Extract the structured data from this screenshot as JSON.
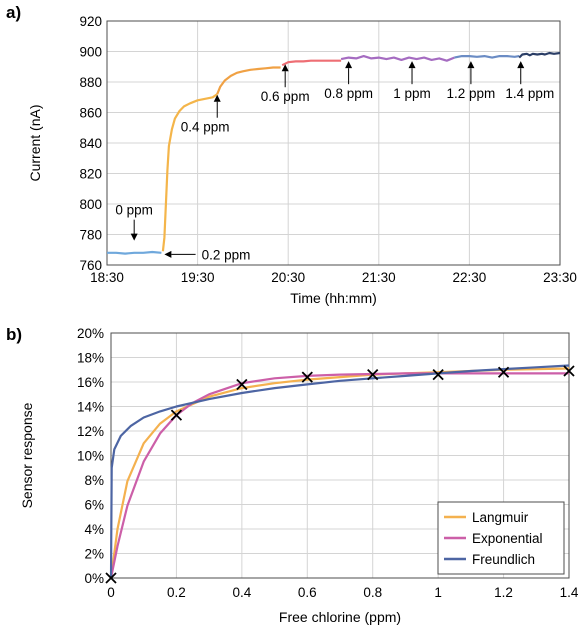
{
  "chart_data": [
    {
      "panel": "a)",
      "type": "line",
      "xlabel": "Time (hh:mm)",
      "ylabel": "Current (nA)",
      "xlim": [
        "18:30",
        "23:30"
      ],
      "ylim": [
        760,
        920
      ],
      "x_ticks": [
        "18:30",
        "19:30",
        "20:30",
        "21:30",
        "22:30",
        "23:30"
      ],
      "y_ticks": [
        760,
        780,
        800,
        820,
        840,
        860,
        880,
        900,
        920
      ],
      "grid": true,
      "series": [
        {
          "color": "#6fa8dc",
          "x": [
            "18:30",
            "18:36",
            "18:42",
            "18:48",
            "18:54",
            "19:00",
            "19:06"
          ],
          "y": [
            768,
            768,
            767.5,
            768,
            768,
            768.5,
            768
          ]
        },
        {
          "color": "#f4b54a",
          "x": [
            "19:07",
            "19:08",
            "19:09",
            "19:10",
            "19:11",
            "19:13",
            "19:15",
            "19:18",
            "19:21",
            "19:25",
            "19:30",
            "19:35",
            "19:40",
            "19:43"
          ],
          "y": [
            769,
            778,
            800,
            822,
            838,
            849,
            856,
            861,
            864,
            866,
            868,
            869,
            870,
            872
          ]
        },
        {
          "color": "#f0a144",
          "x": [
            "19:43",
            "19:45",
            "19:48",
            "19:52",
            "19:56",
            "20:00",
            "20:05",
            "20:10",
            "20:15",
            "20:20",
            "20:25"
          ],
          "y": [
            872,
            877,
            881,
            884,
            886,
            887,
            888,
            888.5,
            889,
            889.5,
            889.5
          ]
        },
        {
          "color": "#ee6e74",
          "x": [
            "20:26",
            "20:28",
            "20:30",
            "20:35",
            "20:40",
            "20:45",
            "20:50",
            "20:55",
            "21:00",
            "21:05"
          ],
          "y": [
            891,
            892,
            893,
            893.5,
            893.5,
            894,
            894,
            894,
            894,
            894
          ]
        },
        {
          "color": "#a56cc1",
          "x": [
            "21:05",
            "21:10",
            "21:15",
            "21:20",
            "21:25",
            "21:30",
            "21:35",
            "21:40",
            "21:45",
            "21:50",
            "21:55",
            "22:00",
            "22:05",
            "22:10",
            "22:15",
            "22:20"
          ],
          "y": [
            895,
            896,
            895.5,
            897,
            895.5,
            896,
            895,
            896,
            894.5,
            896,
            895,
            896,
            894.5,
            895.5,
            894,
            896
          ]
        },
        {
          "color": "#6b8cc4",
          "x": [
            "22:20",
            "22:25",
            "22:30",
            "22:35",
            "22:40",
            "22:45",
            "22:50",
            "22:55",
            "23:00",
            "23:03"
          ],
          "y": [
            896,
            897,
            897,
            896.5,
            897,
            896,
            897,
            897,
            896.5,
            897
          ]
        },
        {
          "color": "#2b3e66",
          "x": [
            "23:03",
            "23:05",
            "23:08",
            "23:10",
            "23:12",
            "23:15",
            "23:18",
            "23:20",
            "23:23",
            "23:26",
            "23:30"
          ],
          "y": [
            896,
            898,
            898.5,
            897.5,
            898.5,
            898,
            898.5,
            898,
            899,
            898.5,
            899
          ]
        }
      ],
      "annotations": [
        {
          "text": "0 ppm",
          "x": "18:48",
          "y": 776,
          "arrow": "down",
          "text_y": 793
        },
        {
          "text": "0.2 ppm",
          "x": "19:08",
          "y": 767,
          "arrow": "left",
          "text_at": "19:30"
        },
        {
          "text": "0.4 ppm",
          "x": "19:43",
          "y": 871,
          "arrow": "up",
          "text_x": "19:35"
        },
        {
          "text": "0.6 ppm",
          "x": "20:28",
          "y": 891,
          "arrow": "up",
          "text_x": "20:28"
        },
        {
          "text": "0.8 ppm",
          "x": "21:10",
          "y": 893,
          "arrow": "up",
          "text_x": "21:10"
        },
        {
          "text": "1 ppm",
          "x": "21:52",
          "y": 893,
          "arrow": "up",
          "text_x": "21:52"
        },
        {
          "text": "1.2 ppm",
          "x": "22:31",
          "y": 893,
          "arrow": "up",
          "text_x": "22:31"
        },
        {
          "text": "1.4 ppm",
          "x": "23:04",
          "y": 893,
          "arrow": "up",
          "text_x": "23:10"
        }
      ]
    },
    {
      "panel": "b)",
      "type": "line",
      "xlabel": "Free chlorine (ppm)",
      "ylabel": "Sensor response",
      "xlim": [
        0,
        1.4
      ],
      "ylim": [
        0,
        20
      ],
      "x_ticks": [
        "0",
        "0.2",
        "0.4",
        "0.6",
        "0.8",
        "1",
        "1.2",
        "1.4"
      ],
      "y_ticks": [
        "0%",
        "2%",
        "4%",
        "6%",
        "8%",
        "10%",
        "12%",
        "14%",
        "16%",
        "18%",
        "20%"
      ],
      "grid": true,
      "legend_position": "bottom-right",
      "points": {
        "marker": "x",
        "x": [
          0,
          0.2,
          0.4,
          0.6,
          0.8,
          1.0,
          1.2,
          1.4
        ],
        "y": [
          0,
          13.3,
          15.8,
          16.4,
          16.6,
          16.6,
          16.8,
          16.9
        ]
      },
      "series": [
        {
          "name": "Langmuir",
          "color": "#f4b14f",
          "x": [
            0,
            0.02,
            0.05,
            0.1,
            0.15,
            0.2,
            0.3,
            0.4,
            0.5,
            0.6,
            0.7,
            0.8,
            0.9,
            1.0,
            1.1,
            1.2,
            1.3,
            1.4
          ],
          "y": [
            0,
            4.0,
            7.9,
            11.0,
            12.6,
            13.6,
            14.8,
            15.5,
            15.9,
            16.2,
            16.4,
            16.6,
            16.7,
            16.8,
            16.9,
            17.0,
            17.05,
            17.1
          ]
        },
        {
          "name": "Exponential",
          "color": "#cc5fa8",
          "x": [
            0,
            0.02,
            0.05,
            0.1,
            0.15,
            0.2,
            0.25,
            0.3,
            0.4,
            0.5,
            0.6,
            0.7,
            0.8,
            0.9,
            1.0,
            1.1,
            1.2,
            1.3,
            1.4
          ],
          "y": [
            0,
            2.6,
            5.9,
            9.5,
            11.8,
            13.3,
            14.3,
            15.0,
            15.9,
            16.3,
            16.5,
            16.6,
            16.65,
            16.7,
            16.7,
            16.7,
            16.7,
            16.7,
            16.7
          ]
        },
        {
          "name": "Freundlich",
          "color": "#4d65a3",
          "x": [
            0,
            0.002,
            0.01,
            0.03,
            0.06,
            0.1,
            0.15,
            0.2,
            0.3,
            0.4,
            0.5,
            0.6,
            0.7,
            0.8,
            0.9,
            1.0,
            1.1,
            1.2,
            1.3,
            1.4
          ],
          "y": [
            0,
            9.0,
            10.5,
            11.6,
            12.4,
            13.1,
            13.6,
            14.0,
            14.6,
            15.1,
            15.5,
            15.8,
            16.1,
            16.3,
            16.5,
            16.7,
            16.9,
            17.05,
            17.2,
            17.35
          ]
        }
      ]
    }
  ]
}
